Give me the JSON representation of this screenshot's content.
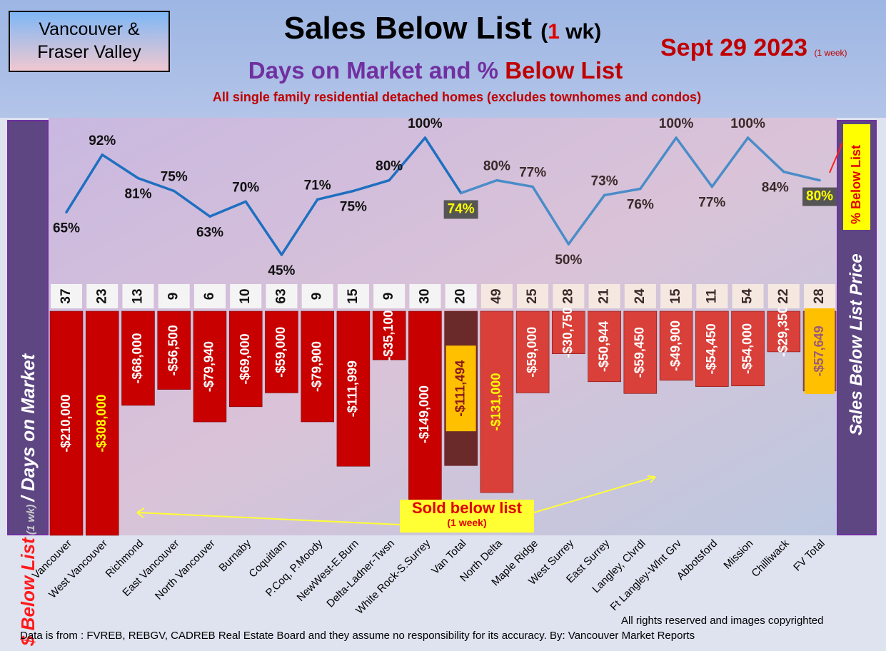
{
  "header": {
    "region_line1": "Vancouver &",
    "region_line2": "Fraser Valley",
    "title": "Sales Below List",
    "title_paren_open": "(",
    "title_period": "1",
    "title_paren_close": " wk)",
    "subtitle_part1": "Days on Market and % ",
    "subtitle_part2": "Below List",
    "note": "All single family residential detached homes (excludes townhomes and condos)",
    "date": "Sept 29  2023",
    "date_note": "(1 week)"
  },
  "left_axis": {
    "part1": "$ Below List",
    "part2": " (1 wk) ",
    "part3": "/ Days on Market"
  },
  "right_axis": {
    "label": "Sales Below List Price",
    "pct_label": "% Below List"
  },
  "sold_box": {
    "label": "Sold below list",
    "sub": "(1 week)"
  },
  "footer": {
    "copyright": "All rights reserved and  images copyrighted",
    "source": "Data is from : FVREB, REBGV, CADREB Real Estate Board and they assume no responsibility for its accuracy. By: Vancouver Market Reports"
  },
  "chart_data": {
    "type": "bar+line",
    "title": "Sales Below List (1 wk)",
    "categories": [
      "Vancouver",
      "West Vancouver",
      "Richmond",
      "East Vancouver",
      "North Vancouver",
      "Burnaby",
      "Coquitlam",
      "P.Coq, P.Moody",
      "NewWest-E.Burn",
      "Delta-Ladner-Twsn",
      "White Rock-S.Surrey",
      "Van Total",
      "North Delta",
      "Maple Ridge",
      "West Surrey",
      "East Surrey",
      "Langley, Clvrdl",
      "Ft Langley-Wlnt Grv",
      "Abbotsford",
      "Mission",
      "Chilliwack",
      "FV Total"
    ],
    "series": [
      {
        "name": "$ Below List",
        "type": "bar",
        "values": [
          -210000,
          -308000,
          -68000,
          -56500,
          -79940,
          -69000,
          -59000,
          -79900,
          -111999,
          -35100,
          -149000,
          -111494,
          -131000,
          -59000,
          -30750,
          -50944,
          -59450,
          -49900,
          -54450,
          -54000,
          -29350,
          -57649
        ],
        "labels": [
          "-$210,000",
          "-$308,000",
          "-$68,000",
          "-$56,500",
          "-$79,940",
          "-$69,000",
          "-$59,000",
          "-$79,900",
          "-$111,999",
          "-$35,100",
          "-$149,000",
          "-$111,494",
          "-$131,000",
          "-$59,000",
          "-$30,750",
          "-$50,944",
          "-$59,450",
          "-$49,900",
          "-$54,450",
          "-$54,000",
          "-$29,350",
          "-$57,649"
        ]
      },
      {
        "name": "Days on Market",
        "type": "label",
        "values": [
          37,
          23,
          13,
          9,
          6,
          10,
          63,
          9,
          15,
          9,
          30,
          20,
          49,
          25,
          28,
          21,
          24,
          15,
          11,
          54,
          22,
          28
        ]
      },
      {
        "name": "% Below List",
        "type": "line",
        "values": [
          65,
          92,
          81,
          75,
          63,
          70,
          45,
          71,
          75,
          80,
          100,
          74,
          80,
          77,
          50,
          73,
          76,
          100,
          77,
          100,
          84,
          80
        ]
      }
    ],
    "colors": {
      "van_bar": "#c80000",
      "fv_bar": "#d9403a",
      "total_label": "#ffc000",
      "line_van": "#1f6fc0",
      "line_fv": "#4a8cc8"
    }
  }
}
